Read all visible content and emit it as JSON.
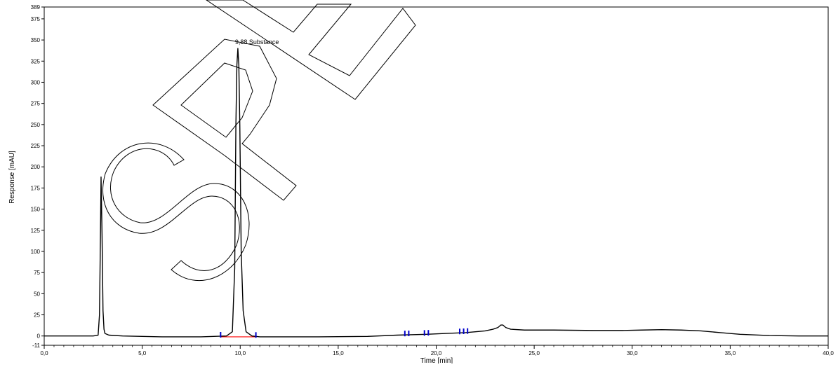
{
  "chart_data": {
    "type": "line",
    "title": "",
    "xlabel": "Time [min]",
    "ylabel": "Response [mAU]",
    "xlim": [
      0,
      40
    ],
    "ylim": [
      -11,
      389
    ],
    "x_ticks": [
      0,
      5,
      10,
      15,
      20,
      25,
      30,
      35,
      40
    ],
    "x_tick_labels": [
      "0,0",
      "5,0",
      "10,0",
      "15,0",
      "20,0",
      "25,0",
      "30,0",
      "35,0",
      "40,0"
    ],
    "y_ticks": [
      -11,
      0,
      25,
      50,
      75,
      100,
      125,
      150,
      175,
      200,
      225,
      250,
      275,
      300,
      325,
      350,
      375,
      389
    ],
    "y_tick_labels": [
      "-11",
      "0",
      "25",
      "50",
      "75",
      "100",
      "125",
      "150",
      "175",
      "200",
      "225",
      "250",
      "275",
      "300",
      "325",
      "350",
      "375",
      "389"
    ],
    "grid": false,
    "line_color": "#000000",
    "baseline_color": "#ff0000",
    "marker_color": "#0000cc",
    "series": [
      {
        "x": [
          0,
          2.5,
          2.75,
          2.82,
          2.87,
          2.9,
          2.95,
          3.0,
          3.05,
          3.1,
          3.3,
          4,
          6,
          8,
          9.3,
          9.6,
          9.72,
          9.78,
          9.83,
          9.88,
          9.93,
          9.98,
          10.05,
          10.15,
          10.3,
          10.6,
          11,
          14,
          16.5,
          18,
          19.5,
          20.5,
          21.5,
          22.5,
          22.9,
          23.15,
          23.3,
          23.4,
          23.55,
          23.8,
          24.5,
          26,
          28,
          29.5,
          30.5,
          31.5,
          32.5,
          33.5,
          34.5,
          35.5,
          37,
          38.5,
          40
        ],
        "y": [
          0,
          0,
          1,
          25,
          120,
          188,
          120,
          30,
          8,
          3,
          1,
          0,
          -1,
          -1,
          0,
          5,
          80,
          250,
          320,
          340,
          320,
          250,
          100,
          30,
          5,
          0,
          -1,
          -1,
          -0.5,
          1,
          2,
          3,
          4,
          6,
          8,
          10,
          13,
          13,
          10,
          8,
          7,
          7,
          6.5,
          6.5,
          7,
          7.5,
          7,
          6,
          4,
          2,
          0.5,
          0,
          0
        ]
      }
    ],
    "annotations": [
      {
        "text": "9,88   Substance",
        "x": 9.88,
        "y": 340
      }
    ],
    "integration_markers_x": [
      9.0,
      10.8,
      18.4,
      18.6,
      19.4,
      19.6,
      21.2,
      21.4,
      21.6
    ]
  }
}
